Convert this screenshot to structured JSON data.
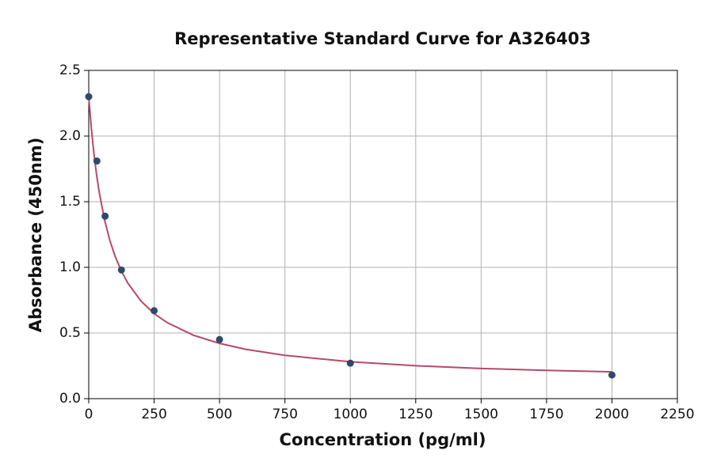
{
  "chart_data": {
    "type": "scatter",
    "title": "Representative Standard Curve for A326403",
    "x_label": "Concentration (pg/ml)",
    "y_label": "Absorbance (450nm)",
    "series": [
      {
        "color": "#2e4a6b",
        "x": [
          0,
          31.25,
          62.5,
          125,
          250,
          500,
          1000,
          2000
        ],
        "values": [
          2.3,
          1.81,
          1.39,
          0.98,
          0.67,
          0.45,
          0.27,
          0.18
        ]
      }
    ],
    "fit": {
      "color": "#b5496a",
      "x": [
        0,
        10,
        20,
        30,
        40,
        60,
        80,
        100,
        125,
        150,
        200,
        250,
        300,
        400,
        500,
        600,
        750,
        1000,
        1250,
        1500,
        1750,
        2000
      ],
      "values": [
        2.3,
        2.058,
        1.864,
        1.705,
        1.573,
        1.366,
        1.21,
        1.089,
        0.971,
        0.878,
        0.743,
        0.648,
        0.579,
        0.483,
        0.421,
        0.376,
        0.33,
        0.281,
        0.251,
        0.23,
        0.215,
        0.204
      ]
    },
    "xlim": [
      0,
      2250
    ],
    "xticks": [
      0,
      250,
      500,
      750,
      1000,
      1250,
      1500,
      1750,
      2000,
      2250
    ],
    "ylim": [
      0,
      2.5
    ],
    "yticks": [
      {
        "value": 0,
        "label": "0.0"
      },
      0.5,
      {
        "value": 1,
        "label": "1.0"
      },
      1.5,
      {
        "value": 2,
        "label": "2.0"
      },
      2.5
    ],
    "grid": true
  }
}
